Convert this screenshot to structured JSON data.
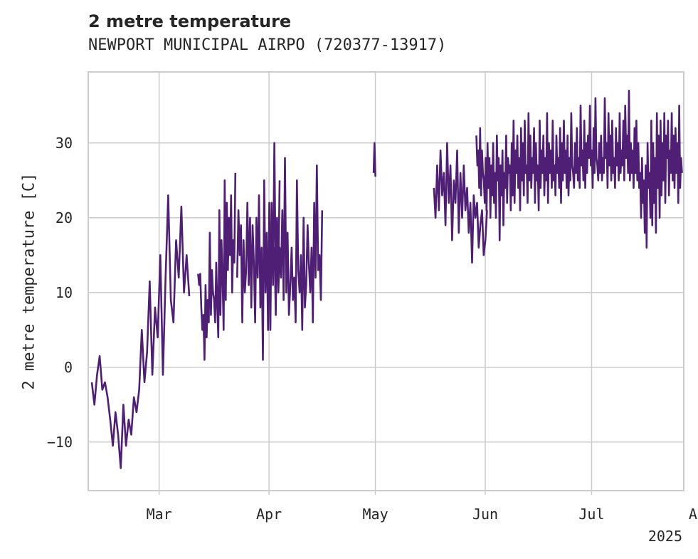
{
  "chart_data": {
    "type": "line",
    "title": "2 metre temperature",
    "subtitle": "NEWPORT MUNICIPAL AIRPO (720377-13917)",
    "xlabel": "",
    "ylabel": "2 metre temperature [C]",
    "x_tick_labels": [
      "Mar",
      "Apr",
      "May",
      "Jun",
      "Jul",
      "Aug"
    ],
    "x_year_label": "2025",
    "y_ticks": [
      -10,
      0,
      10,
      20,
      30
    ],
    "ylim": [
      -16.5,
      39.5
    ],
    "xlim_days": [
      -20.0,
      148.0
    ],
    "x_tick_days": [
      0,
      31,
      61,
      92,
      122,
      153
    ],
    "line_color": "#4f1f75",
    "grid": true,
    "segments": [
      {
        "start_day": -19.0,
        "end_day": 8.5,
        "values": [
          -2,
          -5,
          -1,
          1.5,
          -3,
          -2,
          -4,
          -7,
          -10.5,
          -6,
          -9,
          -13.5,
          -5,
          -10.5,
          -7,
          -9,
          -4,
          -6,
          -3,
          5,
          -2,
          2,
          11.5,
          -1,
          8,
          4,
          15,
          -1,
          12,
          23,
          9,
          6,
          17,
          12,
          21.5,
          10,
          15,
          9.5
        ]
      },
      {
        "start_day": 11.0,
        "end_day": 21.5,
        "values": [
          12.5,
          11,
          12.5,
          8,
          5,
          7,
          1,
          11,
          4,
          9,
          6,
          18,
          7,
          13,
          10,
          9,
          6,
          14,
          8,
          4,
          21,
          7,
          17,
          12,
          5,
          25,
          9,
          22,
          13,
          20,
          15,
          23,
          10,
          17,
          14,
          26
        ]
      },
      {
        "start_day": 22.0,
        "end_day": 34.0,
        "values": [
          12,
          21,
          15,
          19,
          6,
          17,
          10,
          13,
          22,
          11,
          20,
          8,
          19,
          14,
          6,
          20,
          12,
          23,
          8,
          16,
          1,
          25,
          10,
          18,
          5,
          22,
          11,
          15,
          13,
          16,
          7,
          20,
          12,
          25
        ]
      },
      {
        "start_day": 31.0,
        "end_day": 46.0,
        "values": [
          17,
          5,
          22,
          11,
          30,
          13,
          18,
          10,
          16,
          12,
          21,
          9,
          28,
          10,
          18,
          7,
          11,
          16,
          9,
          12,
          6,
          25,
          13,
          10,
          15,
          5,
          20,
          8,
          11,
          19,
          14,
          10,
          16,
          6,
          22,
          12,
          27,
          13,
          15,
          9,
          21
        ]
      },
      {
        "start_day": 60.5,
        "end_day": 61.0,
        "values": [
          26,
          30,
          25.5
        ]
      },
      {
        "start_day": 77.5,
        "end_day": 92.5,
        "values": [
          24,
          20,
          27,
          21,
          29,
          23,
          26,
          19,
          30,
          22,
          27,
          17,
          25,
          22,
          29,
          18,
          26,
          20,
          27,
          21,
          24,
          18,
          22,
          14,
          23,
          20,
          22,
          16,
          19,
          21,
          15,
          17,
          21
        ]
      },
      {
        "start_day": 89.5,
        "end_day": 147.5,
        "values": [
          31,
          27,
          29,
          24,
          32,
          23,
          29,
          26,
          25,
          22,
          28,
          21,
          30,
          24,
          28,
          20,
          27,
          23,
          30,
          22,
          26,
          20,
          31,
          25,
          28,
          17,
          27,
          23,
          29,
          19,
          26,
          24,
          31,
          22,
          28,
          26,
          27,
          21,
          30,
          23,
          33,
          22,
          29,
          26,
          31,
          24,
          28,
          21,
          32,
          25,
          30,
          23,
          33,
          26,
          27,
          22,
          34,
          25,
          31,
          24,
          28,
          26,
          32,
          22,
          30,
          25,
          27,
          21,
          33,
          24,
          29,
          26,
          31,
          23,
          28,
          25,
          34,
          22,
          30,
          26,
          29,
          24,
          33,
          25,
          27,
          23,
          31,
          26,
          28,
          24,
          32,
          22,
          30,
          25,
          33,
          26,
          29,
          24,
          31,
          23,
          28,
          25,
          34,
          27,
          26,
          24,
          30,
          26,
          32,
          25,
          28,
          24,
          35,
          27,
          29,
          25,
          33,
          24,
          30,
          26,
          31,
          28,
          35,
          27,
          29,
          24,
          32,
          26,
          36,
          28,
          27,
          25,
          30,
          26,
          31,
          25,
          28,
          26,
          36,
          28,
          30,
          24,
          34,
          27,
          31,
          25,
          33,
          26,
          28,
          24,
          32,
          27,
          30,
          25,
          34,
          26,
          29,
          27,
          33,
          25,
          35,
          28,
          31,
          26,
          37,
          25,
          30,
          26,
          29,
          24,
          32,
          26,
          33,
          25,
          30,
          24,
          26,
          20,
          28,
          22,
          25,
          18,
          27,
          16,
          30,
          24,
          26,
          20,
          33,
          19,
          30,
          22,
          28,
          18,
          34,
          24,
          31,
          20,
          33,
          23,
          30,
          25,
          34,
          22,
          31,
          28,
          33,
          23,
          29,
          26,
          34,
          25,
          31,
          24,
          32,
          26,
          30,
          22,
          35,
          24,
          28,
          26
        ]
      }
    ]
  }
}
